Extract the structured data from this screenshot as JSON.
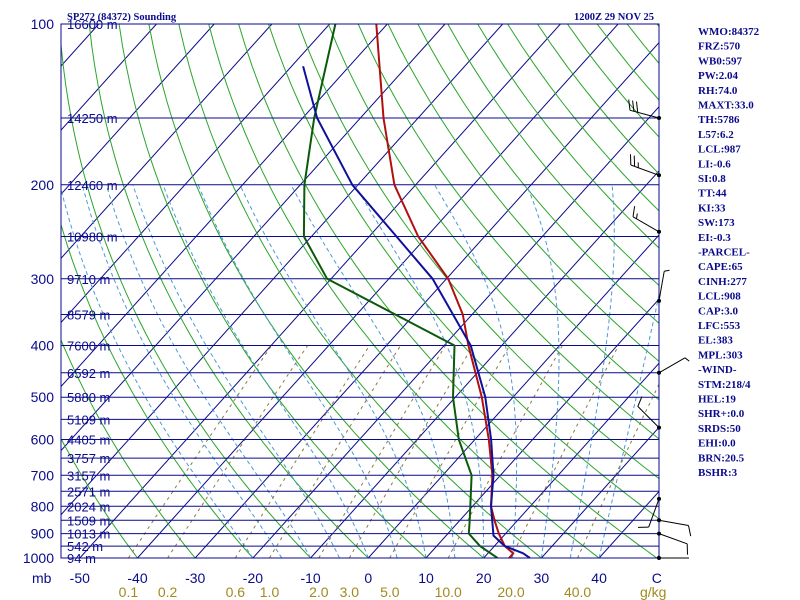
{
  "header": {
    "station": "SP272 (84372) Sounding",
    "datetime": "1200Z 29 NOV 25"
  },
  "indices": [
    "WMO:84372",
    "FRZ:570",
    "WB0:597",
    "PW:2.04",
    "RH:74.0",
    "MAXT:33.0",
    "TH:5786",
    "L57:6.2",
    "LCL:987",
    "LI:-0.6",
    "SI:0.8",
    "TT:44",
    "KI:33",
    "SW:173",
    "EI:-0.3",
    "-PARCEL-",
    "CAPE:65",
    "CINH:277",
    "LCL:908",
    "CAP:3.0",
    "LFC:553",
    "EL:383",
    "MPL:303",
    "-WIND-",
    "STM:218/4",
    "HEL:19",
    "SHR+:0.0",
    "SRDS:50",
    "EHI:0.0",
    "BRN:20.5",
    "BSHR:3"
  ],
  "colors": {
    "isobar": "#0a0a8c",
    "isotherm": "#0a0a8c",
    "dry_adiabat": "#2aa52a",
    "moist_adiabat": "#4a9ad4",
    "mixing_ratio": "#8c7a3c",
    "temperature": "#b01010",
    "dewpoint": "#0a5a0a",
    "parcel": "#10109a",
    "wind": "#000000"
  },
  "chart_data": {
    "type": "skew-t log-p sounding",
    "pressure_axis_label": "mb",
    "pressure_ticks": [
      "100",
      "200",
      "300",
      "400",
      "500",
      "600",
      "700",
      "800",
      "900",
      "1000"
    ],
    "pressure_levels": [
      100,
      200,
      300,
      400,
      "500",
      600,
      700,
      800,
      900,
      1000
    ],
    "temperature_axis_label": "C",
    "temperature_ticks": [
      "-50",
      "-40",
      "-30",
      "-20",
      "-10",
      "0",
      "10",
      "20",
      "30",
      "40"
    ],
    "temperature_tick_values": [
      -50,
      -40,
      -30,
      -20,
      -10,
      0,
      10,
      20,
      30,
      40
    ],
    "mixing_ratio_axis_label": "g/kg",
    "mixing_ratio_ticks": [
      "0.1",
      "0.2",
      "0.6",
      "1.0",
      "2.0",
      "3.0",
      "5.0",
      "10.0",
      "20.0",
      "40.0"
    ],
    "mixing_ratio_values": [
      0.1,
      0.2,
      0.6,
      1.0,
      2.0,
      3.0,
      5.0,
      10.0,
      20.0,
      40.0
    ],
    "heights": [
      {
        "label": "16600 m",
        "p": 100
      },
      {
        "label": "14250 m",
        "p": 150
      },
      {
        "label": "12460 m",
        "p": 200
      },
      {
        "label": "10980 m",
        "p": 250
      },
      {
        "label": "9710 m",
        "p": 300
      },
      {
        "label": "8579 m",
        "p": 350
      },
      {
        "label": "7600 m",
        "p": 400
      },
      {
        "label": "6592 m",
        "p": 450
      },
      {
        "label": "5880 m",
        "p": 500
      },
      {
        "label": "5109 m",
        "p": 550
      },
      {
        "label": "4405 m",
        "p": 600
      },
      {
        "label": "3757 m",
        "p": 650
      },
      {
        "label": "3157 m",
        "p": 700
      },
      {
        "label": "2571 m",
        "p": 750
      },
      {
        "label": "2024 m",
        "p": 800
      },
      {
        "label": "1509 m",
        "p": 850
      },
      {
        "label": "1013 m",
        "p": 900
      },
      {
        "label": "542 m",
        "p": 950
      },
      {
        "label": "94 m",
        "p": 1000
      }
    ],
    "series": [
      {
        "key": "temperature",
        "points": [
          {
            "p": 1000,
            "t": 24.4
          },
          {
            "p": 980,
            "t": 24.4
          },
          {
            "p": 950,
            "t": 21.8
          },
          {
            "p": 900,
            "t": 18.8
          },
          {
            "p": 850,
            "t": 16.0
          },
          {
            "p": 800,
            "t": 13.2
          },
          {
            "p": 700,
            "t": 8.6
          },
          {
            "p": 600,
            "t": 2.4
          },
          {
            "p": 500,
            "t": -5.4
          },
          {
            "p": 400,
            "t": -15.8
          },
          {
            "p": 350,
            "t": -21.6
          },
          {
            "p": 300,
            "t": -29.7
          },
          {
            "p": 250,
            "t": -41.5
          },
          {
            "p": 200,
            "t": -53.7
          },
          {
            "p": 150,
            "t": -66.0
          },
          {
            "p": 100,
            "t": -81.9
          }
        ]
      },
      {
        "key": "dewpoint",
        "points": [
          {
            "p": 1000,
            "t": 22.4
          },
          {
            "p": 950,
            "t": 17.5
          },
          {
            "p": 900,
            "t": 13.6
          },
          {
            "p": 850,
            "t": 11.7
          },
          {
            "p": 800,
            "t": 9.6
          },
          {
            "p": 700,
            "t": 5.0
          },
          {
            "p": 600,
            "t": -2.8
          },
          {
            "p": 500,
            "t": -10.4
          },
          {
            "p": 400,
            "t": -18.2
          },
          {
            "p": 300,
            "t": -50.7
          },
          {
            "p": 250,
            "t": -61.3
          },
          {
            "p": 200,
            "t": -69.3
          },
          {
            "p": 150,
            "t": -78.0
          },
          {
            "p": 100,
            "t": -89.0
          }
        ]
      },
      {
        "key": "parcel",
        "points": [
          {
            "p": 1000,
            "t": 28.0
          },
          {
            "p": 980,
            "t": 26.1
          },
          {
            "p": 950,
            "t": 21.8
          },
          {
            "p": 908,
            "t": 18.2
          },
          {
            "p": 850,
            "t": 15.6
          },
          {
            "p": 800,
            "t": 13.2
          },
          {
            "p": 700,
            "t": 8.8
          },
          {
            "p": 600,
            "t": 2.8
          },
          {
            "p": 500,
            "t": -4.8
          },
          {
            "p": 400,
            "t": -15.4
          },
          {
            "p": 300,
            "t": -32.4
          },
          {
            "p": 200,
            "t": -61.0
          },
          {
            "p": 150,
            "t": -77.5
          },
          {
            "p": 120,
            "t": -88.0
          }
        ]
      }
    ],
    "winds": [
      {
        "p": 1000,
        "dir": 90,
        "kt": 2
      },
      {
        "p": 900,
        "dir": 110,
        "kt": 10
      },
      {
        "p": 850,
        "dir": 100,
        "kt": 10
      },
      {
        "p": 775,
        "dir": 200,
        "kt": 10
      },
      {
        "p": 570,
        "dir": 315,
        "kt": 10
      },
      {
        "p": 450,
        "dir": 60,
        "kt": 5
      },
      {
        "p": 330,
        "dir": 10,
        "kt": 5
      },
      {
        "p": 245,
        "dir": 300,
        "kt": 15
      },
      {
        "p": 192,
        "dir": 290,
        "kt": 25
      },
      {
        "p": 150,
        "dir": 285,
        "kt": 30
      }
    ]
  }
}
